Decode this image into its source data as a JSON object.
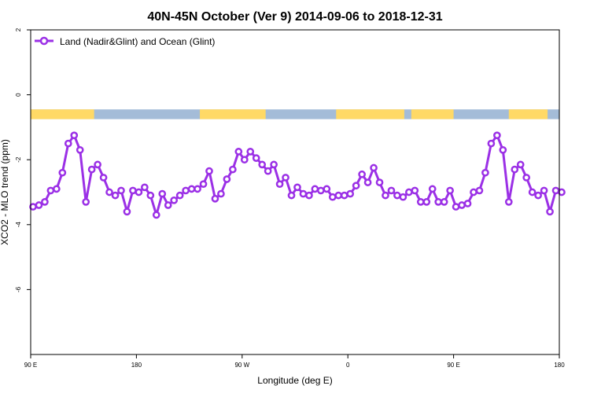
{
  "chart_data": {
    "type": "line",
    "title": "40N-45N October (Ver 9)   2014-09-06 to 2018-12-31",
    "xlabel": "Longitude (deg E)",
    "ylabel": "XCO2 - MLO trend (ppm)",
    "xlim": [
      90,
      540
    ],
    "ylim": [
      -8,
      2
    ],
    "x_ticks": [
      {
        "value": 90,
        "label": "90 E"
      },
      {
        "value": 180,
        "label": "180"
      },
      {
        "value": 270,
        "label": "90 W"
      },
      {
        "value": 360,
        "label": "0"
      },
      {
        "value": 450,
        "label": "90 E"
      },
      {
        "value": 540,
        "label": "180"
      }
    ],
    "y_ticks": [
      {
        "value": 2,
        "label": "2"
      },
      {
        "value": 0,
        "label": "0"
      },
      {
        "value": -2,
        "label": "-2"
      },
      {
        "value": -4,
        "label": "-4"
      },
      {
        "value": -6,
        "label": "-6"
      }
    ],
    "legend": {
      "position": "top-left"
    },
    "land_ocean_strip": {
      "y_range": [
        -0.75,
        -0.45
      ],
      "land_color": "#ffd966",
      "ocean_color": "#a4bcd8",
      "land_segments": [
        [
          90,
          144
        ],
        [
          234,
          290
        ],
        [
          350,
          408
        ],
        [
          414,
          450
        ],
        [
          497,
          530
        ]
      ]
    },
    "series": [
      {
        "name": "Land (Nadir&Glint) and Ocean (Glint)",
        "color": "#9b30e6",
        "x": [
          92,
          97,
          102,
          107,
          112,
          117,
          122,
          127,
          132,
          137,
          142,
          147,
          152,
          157,
          162,
          167,
          172,
          177,
          182,
          187,
          192,
          197,
          202,
          207,
          212,
          217,
          222,
          227,
          232,
          237,
          242,
          247,
          252,
          257,
          262,
          267,
          272,
          277,
          282,
          287,
          292,
          297,
          302,
          307,
          312,
          317,
          322,
          327,
          332,
          337,
          342,
          347,
          352,
          357,
          362,
          367,
          372,
          377,
          382,
          387,
          392,
          397,
          402,
          407,
          412,
          417,
          422,
          427,
          432,
          437,
          442,
          447,
          452,
          457,
          462,
          467,
          472,
          477,
          482,
          487,
          492,
          497,
          502,
          507,
          512,
          517,
          522,
          527,
          532,
          537,
          542
        ],
        "y": [
          -3.45,
          -3.4,
          -3.3,
          -2.95,
          -2.9,
          -2.4,
          -1.5,
          -1.25,
          -1.7,
          -3.3,
          -2.3,
          -2.15,
          -2.55,
          -3.0,
          -3.1,
          -2.95,
          -3.6,
          -2.95,
          -3.0,
          -2.85,
          -3.1,
          -3.7,
          -3.05,
          -3.4,
          -3.25,
          -3.1,
          -2.95,
          -2.9,
          -2.9,
          -2.75,
          -2.35,
          -3.2,
          -3.05,
          -2.6,
          -2.3,
          -1.75,
          -2.0,
          -1.75,
          -1.95,
          -2.15,
          -2.35,
          -2.15,
          -2.75,
          -2.55,
          -3.1,
          -2.85,
          -3.05,
          -3.1,
          -2.9,
          -2.95,
          -2.9,
          -3.15,
          -3.1,
          -3.1,
          -3.05,
          -2.8,
          -2.45,
          -2.7,
          -2.25,
          -2.7,
          -3.1,
          -2.95,
          -3.1,
          -3.15,
          -3.0,
          -2.95,
          -3.3,
          -3.3,
          -2.9,
          -3.3,
          -3.3,
          -2.95,
          -3.45,
          -3.4,
          -3.35,
          -3.0,
          -2.95,
          -2.4,
          -1.5,
          -1.25,
          -1.7,
          -3.3,
          -2.3,
          -2.15,
          -2.55,
          -3.0,
          -3.1,
          -2.95,
          -3.6,
          -2.95,
          -3.0
        ]
      }
    ]
  }
}
